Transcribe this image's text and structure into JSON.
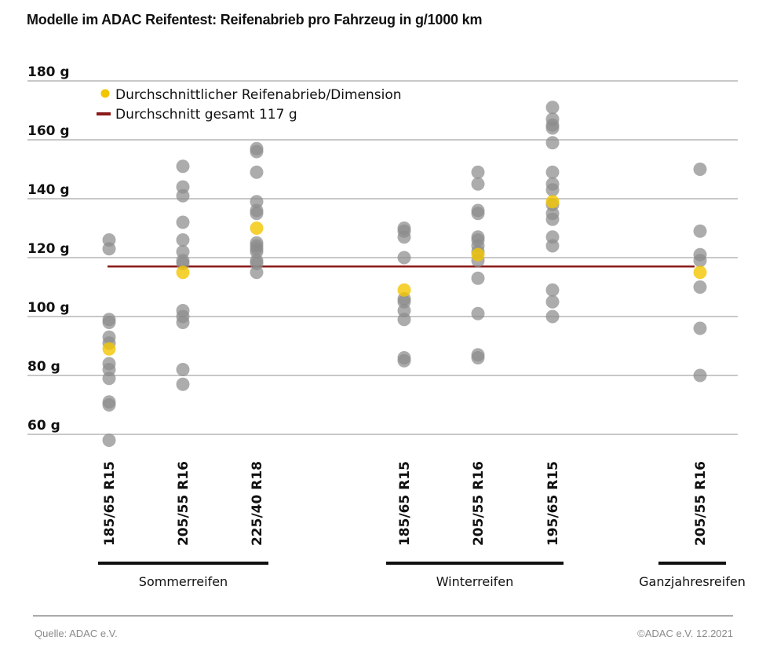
{
  "chart_data": {
    "type": "scatter",
    "title": "Modelle im ADAC Reifentest: Reifenabrieb pro Fahrzeug in g/1000 km",
    "ylabel": "",
    "xlabel": "",
    "ylim": [
      55,
      180
    ],
    "yticks": [
      {
        "value": 180,
        "label": "180 g"
      },
      {
        "value": 160,
        "label": "160 g"
      },
      {
        "value": 140,
        "label": "140 g"
      },
      {
        "value": 120,
        "label": "120 g"
      },
      {
        "value": 100,
        "label": "100 g"
      },
      {
        "value": 80,
        "label": "80 g"
      },
      {
        "value": 60,
        "label": "60 g"
      }
    ],
    "grid": true,
    "legend": {
      "placement": "top-left",
      "items": [
        {
          "kind": "dot",
          "label": "Durchschnittlicher Reifenabrieb/Dimension",
          "color": "#f2c500"
        },
        {
          "kind": "line",
          "label": "Durchschnitt gesamt 117 g",
          "color": "#8b1a1a"
        }
      ]
    },
    "overall_average": 117,
    "groups": [
      {
        "label": "Sommerreifen",
        "categories": [
          0,
          1,
          2
        ]
      },
      {
        "label": "Winterreifen",
        "categories": [
          3,
          4,
          5
        ]
      },
      {
        "label": "Ganzjahresreifen",
        "categories": [
          6
        ]
      }
    ],
    "categories": [
      {
        "label": "185/65 R15",
        "group": "Sommerreifen",
        "average": 89,
        "values": [
          126,
          123,
          99,
          98,
          93,
          91,
          84,
          82,
          79,
          71,
          70,
          58
        ]
      },
      {
        "label": "205/55 R16",
        "group": "Sommerreifen",
        "average": 115,
        "values": [
          151,
          144,
          141,
          132,
          126,
          122,
          119,
          118,
          102,
          100,
          98,
          82,
          77
        ]
      },
      {
        "label": "225/40 R18",
        "group": "Sommerreifen",
        "average": 130,
        "values": [
          157,
          156,
          149,
          139,
          136,
          135,
          125,
          124,
          123,
          122,
          119,
          118,
          115
        ]
      },
      {
        "label": "185/65 R15",
        "group": "Winterreifen",
        "average": 109,
        "values": [
          130,
          129,
          127,
          120,
          106,
          105,
          102,
          99,
          86,
          85
        ]
      },
      {
        "label": "205/55 R16",
        "group": "Winterreifen",
        "average": 121,
        "values": [
          149,
          145,
          136,
          135,
          127,
          126,
          124,
          122,
          119,
          113,
          101,
          87,
          86
        ]
      },
      {
        "label": "195/65 R15",
        "group": "Winterreifen",
        "average": 139,
        "values": [
          171,
          167,
          165,
          164,
          159,
          149,
          145,
          143,
          138,
          135,
          133,
          127,
          124,
          109,
          105,
          100
        ]
      },
      {
        "label": "205/55 R16",
        "group": "Ganzjahresreifen",
        "average": 115,
        "values": [
          150,
          129,
          121,
          119,
          110,
          96,
          80
        ]
      }
    ],
    "colors": {
      "point": "#8c8c8c",
      "average_point": "#f2c500",
      "average_line": "#8b1a1a",
      "gridline": "#b5b5b5",
      "group_bar": "#111111"
    }
  },
  "footer": {
    "source": "Quelle: ADAC e.V.",
    "copyright": "©ADAC e.V.  12.2021"
  }
}
